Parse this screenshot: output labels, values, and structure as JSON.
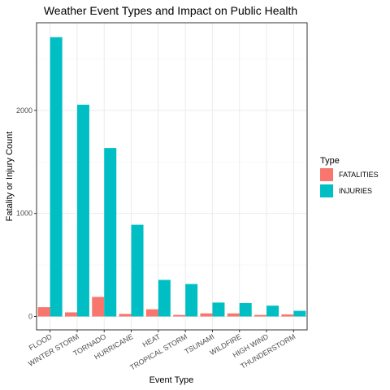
{
  "chart_data": {
    "type": "bar",
    "title": "Weather Event Types and Impact on Public Health",
    "xlabel": "Event Type",
    "ylabel": "Fatality or Injury Count",
    "categories": [
      "FLOOD",
      "WINTER STORM",
      "TORNADO",
      "HURRICANE",
      "HEAT",
      "TROPICAL STORM",
      "TSUNAMI",
      "WILDFIRE",
      "HIGH WIND",
      "THUNDERSTORM"
    ],
    "series": [
      {
        "name": "FATALITIES",
        "color": "#F8766D",
        "values": [
          90,
          40,
          190,
          25,
          70,
          15,
          30,
          30,
          15,
          20
        ]
      },
      {
        "name": "INJURIES",
        "color": "#00BFC4",
        "values": [
          2710,
          2055,
          1635,
          890,
          355,
          315,
          135,
          130,
          105,
          55
        ]
      }
    ],
    "yticks": [
      0,
      1000,
      2000
    ],
    "ylim": [
      -130,
      2850
    ],
    "grid": true,
    "legend": {
      "title": "Type",
      "placement": "right"
    }
  }
}
